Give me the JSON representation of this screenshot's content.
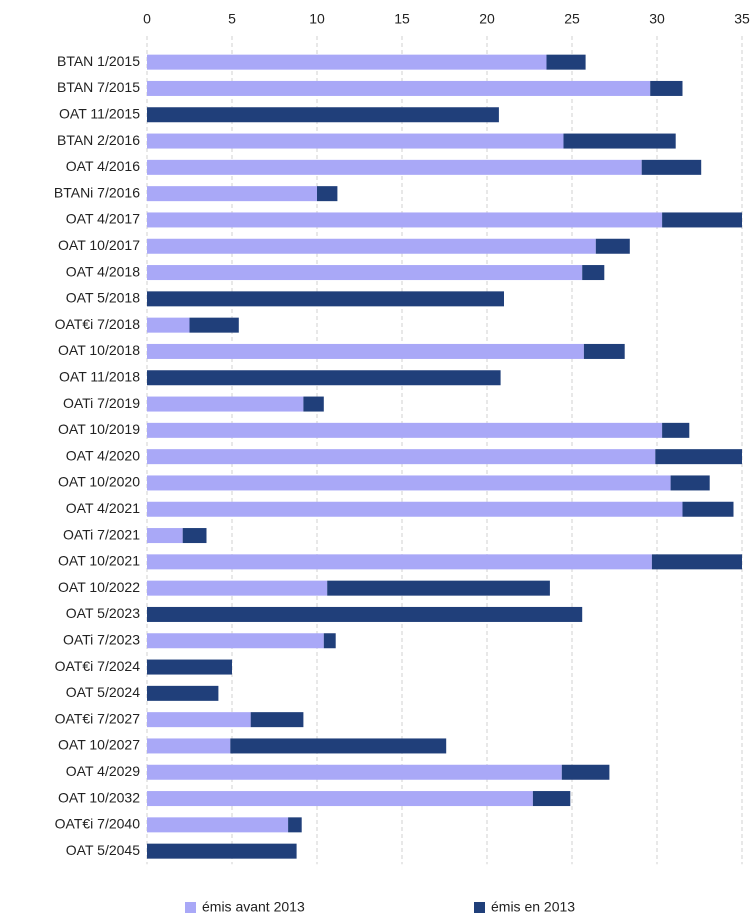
{
  "chart_data": {
    "type": "stacked-barh",
    "categories": [
      "BTAN 1/2015",
      "BTAN 7/2015",
      "OAT 11/2015",
      "BTAN 2/2016",
      "OAT 4/2016",
      "BTANi 7/2016",
      "OAT 4/2017",
      "OAT 10/2017",
      "OAT 4/2018",
      "OAT 5/2018",
      "OAT€i 7/2018",
      "OAT 10/2018",
      "OAT 11/2018",
      "OATi 7/2019",
      "OAT 10/2019",
      "OAT 4/2020",
      "OAT 10/2020",
      "OAT 4/2021",
      "OATi 7/2021",
      "OAT 10/2021",
      "OAT 10/2022",
      "OAT 5/2023",
      "OATi 7/2023",
      "OAT€i 7/2024",
      "OAT 5/2024",
      "OAT€i 7/2027",
      "OAT 10/2027",
      "OAT 4/2029",
      "OAT 10/2032",
      "OAT€i 7/2040",
      "OAT 5/2045"
    ],
    "series": [
      {
        "name": "émis avant 2013",
        "color": "#a9a8f7",
        "values": [
          23.5,
          29.6,
          0,
          24.5,
          29.1,
          10,
          30.3,
          26.4,
          25.6,
          0,
          2.5,
          25.7,
          0,
          9.2,
          30.3,
          29.9,
          30.8,
          31.5,
          2.1,
          29.7,
          10.6,
          0,
          10.4,
          0,
          0,
          6.1,
          4.9,
          24.4,
          22.7,
          8.3,
          0
        ]
      },
      {
        "name": "émis en 2013",
        "color": "#203f7a",
        "values": [
          2.3,
          1.9,
          20.7,
          6.6,
          3.5,
          1.2,
          4.7,
          2.0,
          1.3,
          21.0,
          2.9,
          2.4,
          20.8,
          1.2,
          1.6,
          5.1,
          2.3,
          3.0,
          1.4,
          5.3,
          13.1,
          25.6,
          0.7,
          5.0,
          4.2,
          3.1,
          12.7,
          2.8,
          2.2,
          0.8,
          8.8
        ]
      }
    ],
    "xlim": [
      0,
      35
    ],
    "xticks": [
      0,
      5,
      10,
      15,
      20,
      25,
      30,
      35
    ],
    "grid": true,
    "legend": "bottom"
  }
}
